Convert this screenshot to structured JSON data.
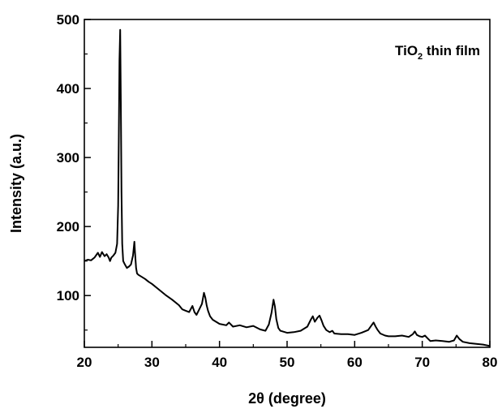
{
  "chart_data": {
    "type": "line",
    "title": "",
    "xlabel": "2θ (degree)",
    "ylabel": "Intensity (a.u.)",
    "xlim": [
      20,
      80
    ],
    "ylim": [
      25,
      500
    ],
    "xticks": [
      "20",
      "30",
      "40",
      "50",
      "60",
      "70",
      "80"
    ],
    "yticks": [
      "100",
      "200",
      "300",
      "400",
      "500"
    ],
    "grid": false,
    "annotation": {
      "main": "TiO",
      "subscript": "2",
      "rest": " thin film"
    },
    "series": [
      {
        "color": "#000000",
        "x": [
          20.0,
          20.5,
          21.0,
          21.5,
          22.0,
          22.3,
          22.6,
          23.0,
          23.3,
          23.6,
          23.8,
          24.0,
          24.3,
          24.6,
          24.85,
          25.0,
          25.1,
          25.2,
          25.3,
          25.4,
          25.5,
          25.6,
          25.75,
          26.0,
          26.3,
          26.6,
          26.9,
          27.2,
          27.4,
          27.5,
          27.65,
          27.8,
          28.0,
          28.5,
          29.0,
          29.5,
          30.0,
          31.0,
          32.0,
          33.0,
          34.0,
          34.5,
          35.0,
          35.5,
          36.0,
          36.3,
          36.6,
          37.0,
          37.4,
          37.7,
          37.9,
          38.1,
          38.3,
          38.6,
          39.0,
          40.0,
          41.0,
          41.4,
          42.0,
          43.0,
          44.0,
          45.0,
          46.0,
          46.8,
          47.3,
          47.7,
          48.0,
          48.2,
          48.4,
          48.7,
          49.0,
          50.0,
          51.0,
          52.0,
          53.0,
          53.5,
          53.8,
          54.1,
          54.5,
          54.8,
          55.1,
          55.4,
          55.8,
          56.3,
          56.7,
          57.0,
          58.0,
          59.0,
          60.0,
          61.0,
          62.0,
          62.5,
          62.8,
          63.1,
          63.4,
          63.8,
          64.5,
          65.0,
          66.0,
          67.0,
          68.0,
          68.6,
          68.9,
          69.2,
          69.6,
          70.0,
          70.4,
          70.8,
          71.2,
          72.0,
          73.0,
          74.0,
          74.7,
          75.1,
          75.5,
          76.0,
          77.0,
          78.0,
          79.0,
          80.0
        ],
        "y": [
          150,
          152,
          151,
          155,
          162,
          156,
          163,
          157,
          160,
          155,
          150,
          155,
          158,
          162,
          175,
          230,
          330,
          440,
          485,
          380,
          250,
          175,
          150,
          145,
          140,
          142,
          145,
          158,
          178,
          162,
          140,
          132,
          130,
          127,
          124,
          120,
          117,
          109,
          101,
          94,
          86,
          80,
          78,
          76,
          85,
          76,
          72,
          80,
          88,
          104,
          97,
          86,
          78,
          70,
          65,
          59,
          57,
          61,
          55,
          57,
          54,
          56,
          51,
          49,
          58,
          75,
          94,
          84,
          66,
          53,
          49,
          46,
          47,
          49,
          55,
          65,
          70,
          62,
          68,
          71,
          64,
          56,
          50,
          47,
          49,
          45,
          44,
          44,
          43,
          46,
          50,
          57,
          61,
          55,
          50,
          45,
          42,
          41,
          41,
          42,
          40,
          44,
          48,
          43,
          41,
          40,
          42,
          38,
          34,
          35,
          34,
          33,
          35,
          42,
          37,
          33,
          31,
          30,
          29,
          27
        ]
      }
    ]
  }
}
